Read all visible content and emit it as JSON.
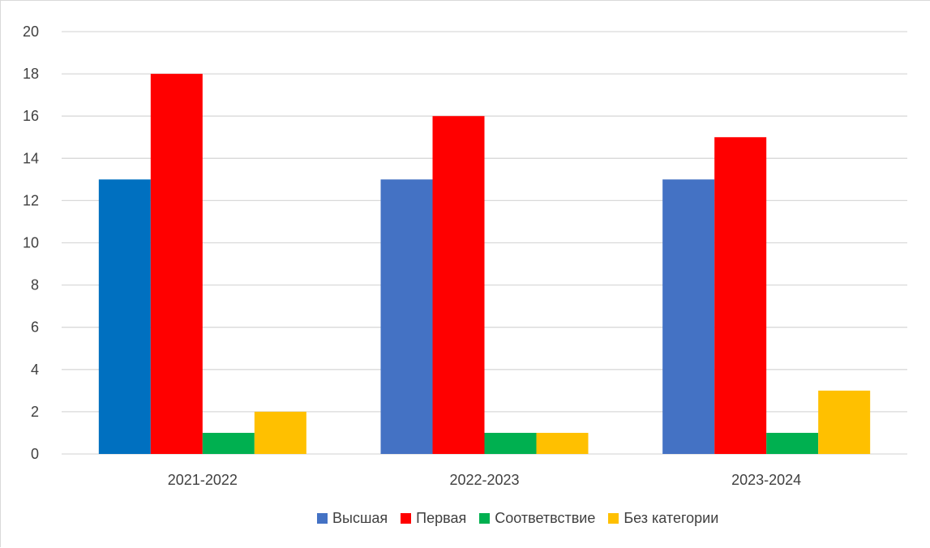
{
  "chart_data": {
    "type": "bar",
    "categories": [
      "2021-2022",
      "2022-2023",
      "2023-2024"
    ],
    "series": [
      {
        "name": "Высшая",
        "values": [
          13,
          13,
          13
        ],
        "color": "#4472C4"
      },
      {
        "name": "Первая",
        "values": [
          18,
          16,
          15
        ],
        "color": "#FF0000"
      },
      {
        "name": "Соответвствие",
        "values": [
          1,
          1,
          1
        ],
        "color": "#00B050"
      },
      {
        "name": "Без категории",
        "values": [
          2,
          1,
          3
        ],
        "color": "#FFC000"
      }
    ],
    "title": "",
    "xlabel": "",
    "ylabel": "",
    "ylim": [
      0,
      20
    ],
    "yticks": [
      0,
      2,
      4,
      6,
      8,
      10,
      12,
      14,
      16,
      18,
      20
    ],
    "grid": true,
    "legend_position": "bottom",
    "first_bar_color": "#0070C0"
  }
}
